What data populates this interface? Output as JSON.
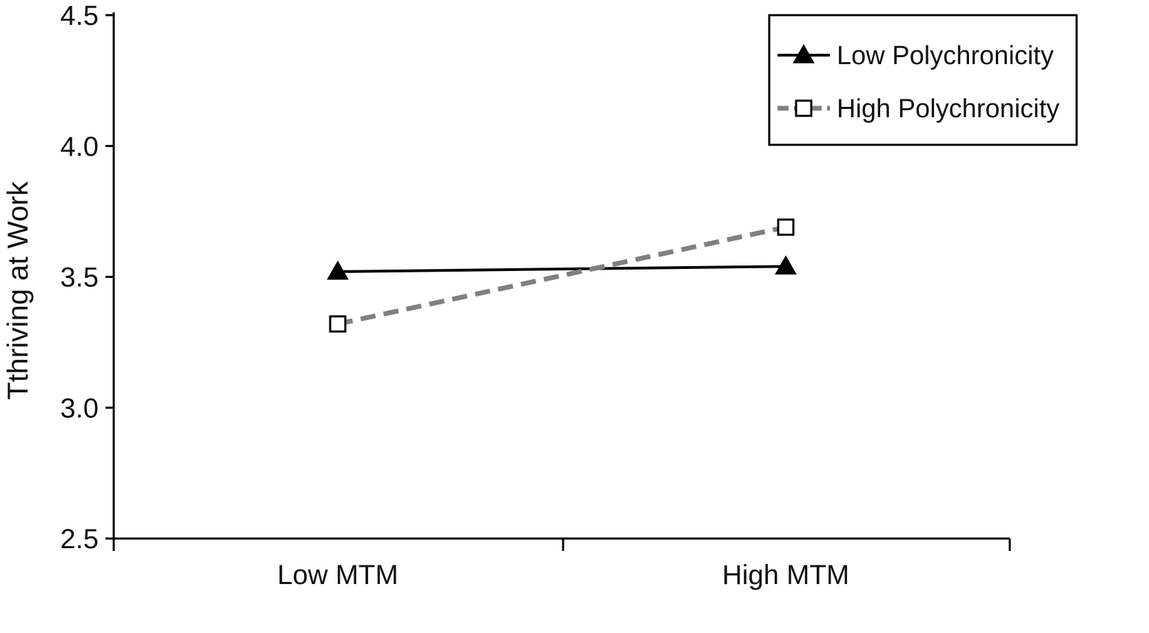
{
  "chart_data": {
    "type": "line",
    "title": "",
    "xlabel": "",
    "ylabel": "Tthriving at Work",
    "categories": [
      "Low MTM",
      "High MTM"
    ],
    "ylim": [
      2.5,
      4.5
    ],
    "yticks": [
      "2.5",
      "3.0",
      "3.5",
      "4.0",
      "4.5"
    ],
    "ytick_values": [
      2.5,
      3.0,
      3.5,
      4.0,
      4.5
    ],
    "grid": false,
    "legend_position": "top-right",
    "series": [
      {
        "name": "Low Polychronicity",
        "values": [
          3.52,
          3.54
        ],
        "color": "#000000",
        "line_style": "solid",
        "marker": "filled-triangle"
      },
      {
        "name": "High Polychronicity",
        "values": [
          3.32,
          3.69
        ],
        "color": "#808080",
        "line_style": "dashed",
        "marker": "open-square"
      }
    ]
  }
}
